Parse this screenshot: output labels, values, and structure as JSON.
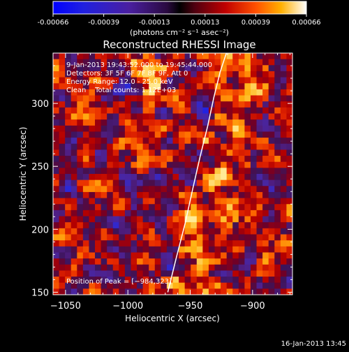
{
  "colorbar": {
    "ticks": [
      "-0.00066",
      "-0.00039",
      "-0.00013",
      "0.00013",
      "0.00039",
      "0.00066"
    ],
    "unit_label": "(photons cm⁻² s⁻¹ asec⁻²)",
    "range": [
      -0.00066,
      0.00066
    ]
  },
  "chart_data": {
    "type": "heatmap",
    "title": "Reconstructed RHESSI Image",
    "xlabel": "Heliocentric X (arcsec)",
    "ylabel": "Heliocentric Y (arcsec)",
    "xlim": [
      -1060,
      -868
    ],
    "ylim": [
      148,
      340
    ],
    "xticks": [
      -1050,
      -1000,
      -950,
      -900
    ],
    "yticks": [
      150,
      200,
      250,
      300
    ],
    "xtick_labels": [
      "−1050",
      "−1000",
      "−950",
      "−900"
    ],
    "ytick_labels": [
      "150",
      "200",
      "250",
      "300"
    ],
    "limb_curve": {
      "x": [
        -968,
        -961,
        -954,
        -948,
        -942,
        -936,
        -931,
        -926,
        -921
      ],
      "y": [
        150,
        178,
        205,
        232,
        258,
        282,
        305,
        325,
        340
      ]
    },
    "peak": {
      "x": -984,
      "y": 323
    },
    "annotations": [
      "9-Jan-2013 19:43:52.000 to 19:45:44.000",
      "Detectors: 3F 5F 6F 7F 8F 9F, Att 0",
      "Energy Range: 12.0 - 25.0 keV",
      "Clean    Total counts: 1.12E+03"
    ],
    "peak_label": "Position of Peak = [−984,323]",
    "grid": false
  },
  "footer_date": "16-Jan-2013 13:45",
  "colors": {
    "background": "#000000",
    "axes": "#ffffff"
  }
}
